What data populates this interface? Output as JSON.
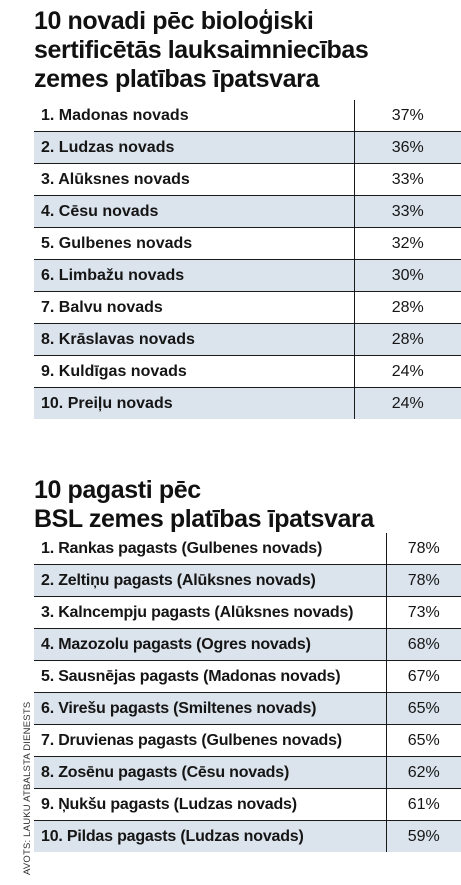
{
  "section1": {
    "title_lines": [
      "10 novadi pēc bioloģiski",
      "sertificētās lauksaimniecības",
      "zemes platības īpatsvara"
    ],
    "rows": [
      {
        "name": "1. Madonas novads",
        "value": "37%"
      },
      {
        "name": "2. Ludzas novads",
        "value": "36%"
      },
      {
        "name": "3. Alūksnes novads",
        "value": "33%"
      },
      {
        "name": "4. Cēsu novads",
        "value": "33%"
      },
      {
        "name": "5. Gulbenes novads",
        "value": "32%"
      },
      {
        "name": "6. Limbažu novads",
        "value": "30%"
      },
      {
        "name": "7. Balvu novads",
        "value": "28%"
      },
      {
        "name": "8. Krāslavas novads",
        "value": "28%"
      },
      {
        "name": "9. Kuldīgas novads",
        "value": "24%"
      },
      {
        "name": "10. Preiļu novads",
        "value": "24%"
      }
    ]
  },
  "section2": {
    "title_lines": [
      "10 pagasti pēc",
      "BSL zemes platības īpatsvara"
    ],
    "rows": [
      {
        "name": "1. Rankas pagasts (Gulbenes novads)",
        "value": "78%"
      },
      {
        "name": "2. Zeltiņu pagasts (Alūksnes novads)",
        "value": "78%"
      },
      {
        "name": "3. Kalncempju pagasts (Alūksnes novads)",
        "value": "73%"
      },
      {
        "name": "4. Mazozolu pagasts (Ogres novads)",
        "value": "68%"
      },
      {
        "name": "5. Sausnējas pagasts (Madonas novads)",
        "value": "67%"
      },
      {
        "name": "6. Virešu pagasts (Smiltenes novads)",
        "value": "65%"
      },
      {
        "name": "7. Druvienas pagasts (Gulbenes novads)",
        "value": "65%"
      },
      {
        "name": "8. Zosēnu pagasts (Cēsu novads)",
        "value": "62%"
      },
      {
        "name": "9. Ņukšu pagasts (Ludzas novads)",
        "value": "61%"
      },
      {
        "name": "10. Pildas pagasts (Ludzas novads)",
        "value": "59%"
      }
    ]
  },
  "source": "AVOTS: LAUKU ATBALSTA DIENESTS",
  "colors": {
    "stripe": "#dbe3ec",
    "rule": "#1a1a1a",
    "text": "#151515"
  }
}
